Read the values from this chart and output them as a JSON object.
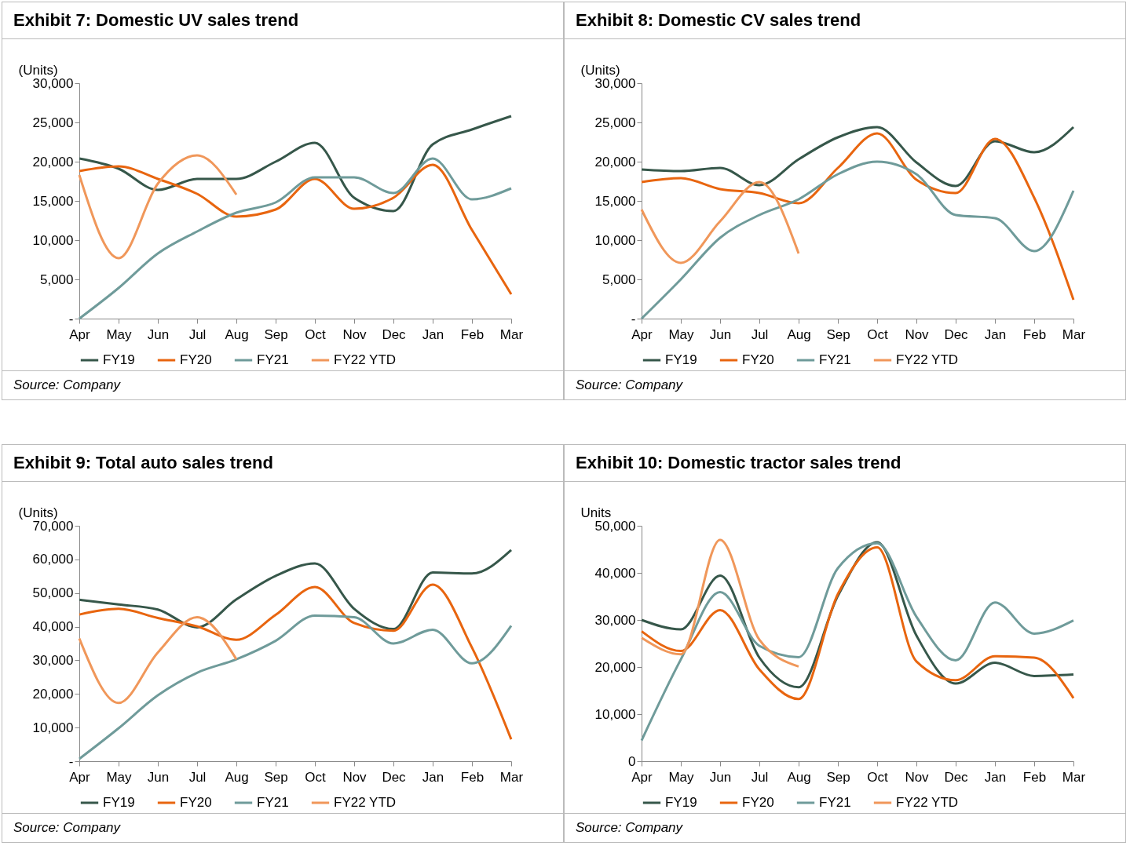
{
  "chart_data": [
    {
      "type": "line",
      "title": "Exhibit 7: Domestic UV sales trend",
      "ylabel": "(Units)",
      "annotations": [
        "Source: Company"
      ],
      "legend": "bottom",
      "categories": [
        "Apr",
        "May",
        "Jun",
        "Jul",
        "Aug",
        "Sep",
        "Oct",
        "Nov",
        "Dec",
        "Jan",
        "Feb",
        "Mar"
      ],
      "ylim": [
        0,
        30000
      ],
      "yticks": [
        {
          "value": 0,
          "label": "-"
        },
        {
          "value": 5000,
          "label": "5,000"
        },
        {
          "value": 10000,
          "label": "10,000"
        },
        {
          "value": 15000,
          "label": "15,000"
        },
        {
          "value": 20000,
          "label": "20,000"
        },
        {
          "value": 25000,
          "label": "25,000"
        },
        {
          "value": 30000,
          "label": "30,000"
        }
      ],
      "series": [
        {
          "name": "FY19",
          "color": "#36574a",
          "values": [
            20400,
            19100,
            16400,
            17800,
            17800,
            20000,
            22400,
            15400,
            13700,
            22200,
            24100,
            25800
          ]
        },
        {
          "name": "FY20",
          "color": "#e8650f",
          "values": [
            18800,
            19400,
            17800,
            15900,
            13000,
            13900,
            17800,
            14000,
            15400,
            19600,
            11300,
            3100
          ]
        },
        {
          "name": "FY21",
          "color": "#6f9b9a",
          "values": [
            0,
            3900,
            8300,
            11100,
            13500,
            14800,
            18000,
            18000,
            16000,
            20400,
            15200,
            16600
          ]
        },
        {
          "name": "FY22 YTD",
          "color": "#f0975a",
          "values": [
            18300,
            7700,
            17200,
            20800,
            15800,
            null,
            null,
            null,
            null,
            null,
            null,
            null
          ]
        }
      ]
    },
    {
      "type": "line",
      "title": "Exhibit 8: Domestic CV sales trend",
      "ylabel": "(Units)",
      "annotations": [
        "Source: Company"
      ],
      "legend": "bottom",
      "categories": [
        "Apr",
        "May",
        "Jun",
        "Jul",
        "Aug",
        "Sep",
        "Oct",
        "Nov",
        "Dec",
        "Jan",
        "Feb",
        "Mar"
      ],
      "ylim": [
        0,
        30000
      ],
      "yticks": [
        {
          "value": 0,
          "label": "-"
        },
        {
          "value": 5000,
          "label": "5,000"
        },
        {
          "value": 10000,
          "label": "10,000"
        },
        {
          "value": 15000,
          "label": "15,000"
        },
        {
          "value": 20000,
          "label": "20,000"
        },
        {
          "value": 25000,
          "label": "25,000"
        },
        {
          "value": 30000,
          "label": "30,000"
        }
      ],
      "series": [
        {
          "name": "FY19",
          "color": "#36574a",
          "values": [
            19000,
            18800,
            19200,
            17000,
            20300,
            23100,
            24400,
            19900,
            16900,
            22600,
            21200,
            24400
          ]
        },
        {
          "name": "FY20",
          "color": "#e8650f",
          "values": [
            17400,
            17900,
            16500,
            16000,
            14700,
            19200,
            23600,
            17700,
            16000,
            22900,
            15400,
            2400
          ]
        },
        {
          "name": "FY21",
          "color": "#6f9b9a",
          "values": [
            0,
            5000,
            10300,
            13200,
            15200,
            18400,
            20000,
            18400,
            13200,
            12800,
            8600,
            16300
          ]
        },
        {
          "name": "FY22 YTD",
          "color": "#f0975a",
          "values": [
            13900,
            7100,
            12400,
            17400,
            8300,
            null,
            null,
            null,
            null,
            null,
            null,
            null
          ]
        }
      ]
    },
    {
      "type": "line",
      "title": "Exhibit 9: Total auto sales trend",
      "ylabel": "(Units)",
      "annotations": [
        "Source: Company"
      ],
      "legend": "bottom",
      "categories": [
        "Apr",
        "May",
        "Jun",
        "Jul",
        "Aug",
        "Sep",
        "Oct",
        "Nov",
        "Dec",
        "Jan",
        "Feb",
        "Mar"
      ],
      "ylim": [
        0,
        70000
      ],
      "yticks": [
        {
          "value": 0,
          "label": "-"
        },
        {
          "value": 10000,
          "label": "10,000"
        },
        {
          "value": 20000,
          "label": "20,000"
        },
        {
          "value": 30000,
          "label": "30,000"
        },
        {
          "value": 40000,
          "label": "40,000"
        },
        {
          "value": 50000,
          "label": "50,000"
        },
        {
          "value": 60000,
          "label": "60,000"
        },
        {
          "value": 70000,
          "label": "70,000"
        }
      ],
      "series": [
        {
          "name": "FY19",
          "color": "#36574a",
          "values": [
            48000,
            46600,
            45100,
            39800,
            48100,
            55100,
            58800,
            45300,
            39300,
            56100,
            55800,
            62800
          ]
        },
        {
          "name": "FY20",
          "color": "#e8650f",
          "values": [
            43600,
            45300,
            42600,
            40100,
            36100,
            43500,
            51800,
            41100,
            38800,
            52500,
            33800,
            6500
          ]
        },
        {
          "name": "FY21",
          "color": "#6f9b9a",
          "values": [
            700,
            9800,
            19600,
            26300,
            30300,
            35800,
            43300,
            42800,
            35000,
            39100,
            29100,
            40300
          ]
        },
        {
          "name": "FY22 YTD",
          "color": "#f0975a",
          "values": [
            36500,
            17300,
            32300,
            42800,
            30300,
            null,
            null,
            null,
            null,
            null,
            null,
            null
          ]
        }
      ]
    },
    {
      "type": "line",
      "title": "Exhibit 10: Domestic tractor sales trend",
      "ylabel": "Units",
      "annotations": [
        "Source: Company"
      ],
      "legend": "bottom",
      "categories": [
        "Apr",
        "May",
        "Jun",
        "Jul",
        "Aug",
        "Sep",
        "Oct",
        "Nov",
        "Dec",
        "Jan",
        "Feb",
        "Mar"
      ],
      "ylim": [
        0,
        50000
      ],
      "yticks": [
        0,
        {
          "value": 10000,
          "label": "10,000"
        },
        {
          "value": 20000,
          "label": "20,000"
        },
        {
          "value": 30000,
          "label": "30,000"
        },
        {
          "value": 40000,
          "label": "40,000"
        },
        {
          "value": 50000,
          "label": "50,000"
        }
      ],
      "series": [
        {
          "name": "FY19",
          "color": "#36574a",
          "values": [
            30000,
            28000,
            39400,
            22000,
            15700,
            35100,
            46500,
            26700,
            16500,
            20900,
            18100,
            18400
          ]
        },
        {
          "name": "FY20",
          "color": "#e8650f",
          "values": [
            27600,
            23400,
            32100,
            19500,
            13200,
            35500,
            45400,
            21200,
            17200,
            22300,
            22000,
            13400
          ]
        },
        {
          "name": "FY21",
          "color": "#6f9b9a",
          "values": [
            4400,
            21600,
            35900,
            24500,
            22100,
            41000,
            46300,
            30700,
            21400,
            33700,
            27100,
            29900
          ]
        },
        {
          "name": "FY22 YTD",
          "color": "#f0975a",
          "values": [
            26200,
            22700,
            47000,
            25800,
            20100,
            null,
            null,
            null,
            null,
            null,
            null,
            null
          ]
        }
      ]
    }
  ]
}
